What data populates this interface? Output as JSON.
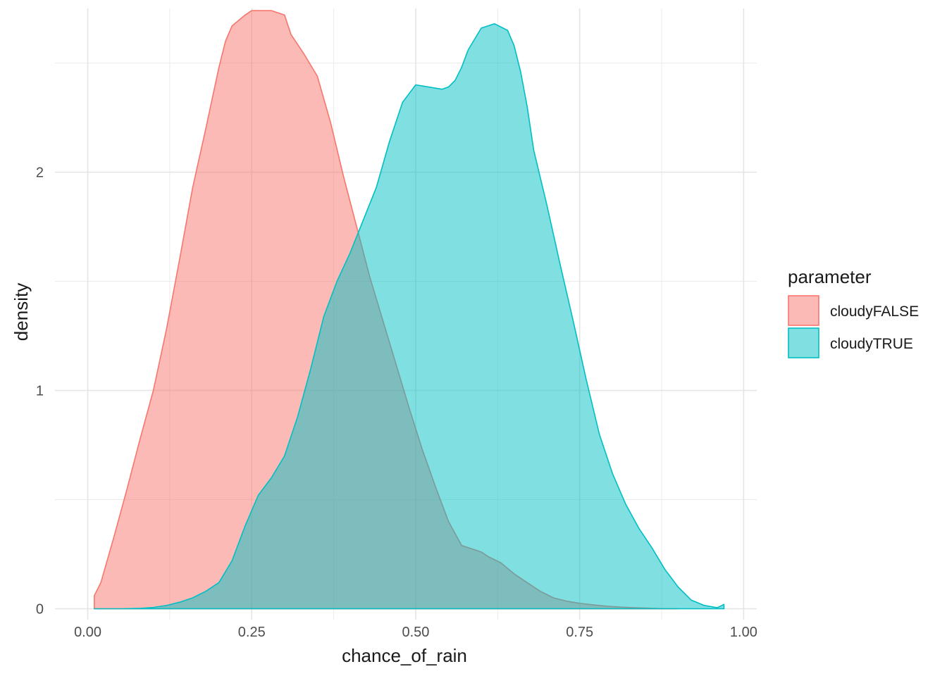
{
  "chart_data": {
    "type": "area",
    "xlabel": "chance_of_rain",
    "ylabel": "density",
    "xlim": [
      -0.05,
      1.02
    ],
    "ylim": [
      -0.05,
      2.75
    ],
    "x_ticks": [
      0.0,
      0.25,
      0.5,
      0.75,
      1.0
    ],
    "x_tick_labels": [
      "0.00",
      "0.25",
      "0.50",
      "0.75",
      "1.00"
    ],
    "y_ticks": [
      0,
      1,
      2
    ],
    "y_tick_labels": [
      "0",
      "1",
      "2"
    ],
    "grid": true,
    "legend": {
      "title": "parameter",
      "position": "right"
    },
    "series": [
      {
        "name": "cloudyFALSE",
        "color": "#F8766D",
        "x": [
          0.01,
          0.02,
          0.04,
          0.06,
          0.08,
          0.1,
          0.12,
          0.14,
          0.16,
          0.18,
          0.2,
          0.21,
          0.22,
          0.24,
          0.25,
          0.26,
          0.28,
          0.3,
          0.31,
          0.33,
          0.35,
          0.37,
          0.39,
          0.41,
          0.43,
          0.45,
          0.47,
          0.49,
          0.51,
          0.53,
          0.55,
          0.57,
          0.59,
          0.6,
          0.61,
          0.63,
          0.65,
          0.67,
          0.69,
          0.71,
          0.73,
          0.75,
          0.77,
          0.79,
          0.81,
          0.83,
          0.85,
          0.87,
          0.9
        ],
        "y": [
          0.06,
          0.12,
          0.33,
          0.55,
          0.78,
          1.0,
          1.28,
          1.6,
          1.93,
          2.2,
          2.48,
          2.6,
          2.67,
          2.72,
          2.74,
          2.74,
          2.74,
          2.72,
          2.63,
          2.54,
          2.44,
          2.23,
          1.98,
          1.75,
          1.52,
          1.32,
          1.12,
          0.92,
          0.73,
          0.56,
          0.4,
          0.29,
          0.27,
          0.26,
          0.24,
          0.21,
          0.16,
          0.12,
          0.08,
          0.05,
          0.035,
          0.025,
          0.018,
          0.012,
          0.008,
          0.005,
          0.003,
          0.001,
          0.0
        ]
      },
      {
        "name": "cloudyTRUE",
        "color": "#00BFC4",
        "x": [
          0.01,
          0.05,
          0.08,
          0.1,
          0.12,
          0.14,
          0.16,
          0.18,
          0.2,
          0.22,
          0.24,
          0.26,
          0.28,
          0.3,
          0.32,
          0.34,
          0.36,
          0.38,
          0.4,
          0.42,
          0.44,
          0.46,
          0.48,
          0.5,
          0.52,
          0.54,
          0.55,
          0.56,
          0.57,
          0.58,
          0.6,
          0.62,
          0.64,
          0.65,
          0.66,
          0.67,
          0.68,
          0.7,
          0.72,
          0.74,
          0.76,
          0.78,
          0.8,
          0.82,
          0.84,
          0.86,
          0.88,
          0.9,
          0.92,
          0.94,
          0.96,
          0.97
        ],
        "y": [
          0.0,
          0.0,
          0.002,
          0.006,
          0.015,
          0.03,
          0.05,
          0.08,
          0.12,
          0.22,
          0.38,
          0.52,
          0.6,
          0.7,
          0.88,
          1.1,
          1.34,
          1.5,
          1.63,
          1.78,
          1.93,
          2.14,
          2.32,
          2.4,
          2.39,
          2.38,
          2.39,
          2.42,
          2.48,
          2.56,
          2.66,
          2.68,
          2.65,
          2.58,
          2.46,
          2.3,
          2.1,
          1.85,
          1.58,
          1.32,
          1.05,
          0.8,
          0.62,
          0.48,
          0.37,
          0.28,
          0.18,
          0.1,
          0.04,
          0.015,
          0.005,
          0.02
        ]
      }
    ]
  }
}
